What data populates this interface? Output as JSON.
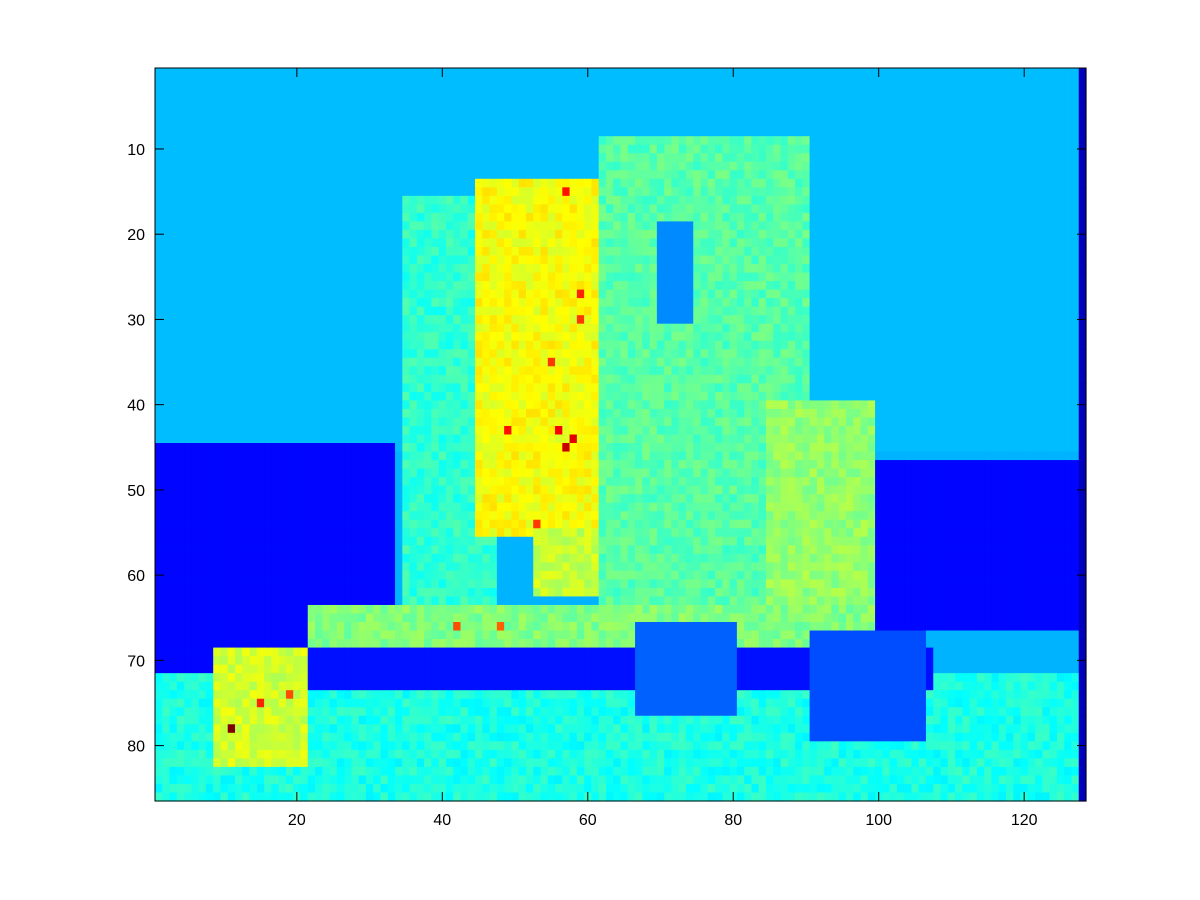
{
  "chart_data": {
    "type": "heatmap",
    "title": "",
    "xlabel": "",
    "ylabel": "",
    "colormap": "jet",
    "columns": 128,
    "rows": 86,
    "xlim": [
      0.5,
      128.5
    ],
    "ylim": [
      0.5,
      86.5
    ],
    "y_direction": "reverse",
    "color_range": [
      0,
      1
    ],
    "x_ticks": [
      20,
      40,
      60,
      80,
      100,
      120
    ],
    "x_tick_labels": [
      "20",
      "40",
      "60",
      "80",
      "100",
      "120"
    ],
    "y_ticks": [
      10,
      20,
      30,
      40,
      50,
      60,
      70,
      80
    ],
    "y_tick_labels": [
      "10",
      "20",
      "30",
      "40",
      "50",
      "60",
      "70",
      "80"
    ],
    "grid": false,
    "regions": [
      {
        "name": "sky",
        "value": 0.31,
        "x": [
          1,
          128
        ],
        "y": [
          1,
          45
        ]
      },
      {
        "name": "left hills",
        "value": 0.13,
        "x": [
          1,
          33
        ],
        "y": [
          45,
          72
        ]
      },
      {
        "name": "right hills",
        "value": 0.13,
        "x": [
          98,
          128
        ],
        "y": [
          47,
          66
        ]
      },
      {
        "name": "ground",
        "value": 0.4,
        "x": [
          1,
          128
        ],
        "y": [
          72,
          86
        ]
      },
      {
        "name": "right edge column",
        "value": 0.06,
        "x": [
          128,
          128
        ],
        "y": [
          1,
          86
        ]
      },
      {
        "name": "left monument block",
        "value": 0.42,
        "x": [
          35,
          47
        ],
        "y": [
          16,
          64
        ]
      },
      {
        "name": "monument face",
        "value": 0.62,
        "x": [
          45,
          66
        ],
        "y": [
          14,
          55
        ]
      },
      {
        "name": "monument lower face",
        "value": 0.57,
        "x": [
          53,
          66
        ],
        "y": [
          55,
          62
        ]
      },
      {
        "name": "monument middle",
        "value": 0.46,
        "x": [
          62,
          90
        ],
        "y": [
          9,
          70
        ]
      },
      {
        "name": "monument right edge",
        "value": 0.52,
        "x": [
          85,
          99
        ],
        "y": [
          40,
          66
        ]
      },
      {
        "name": "shaded slit",
        "value": 0.26,
        "x": [
          70,
          74
        ],
        "y": [
          19,
          30
        ]
      },
      {
        "name": "plinth",
        "value": 0.5,
        "x": [
          22,
          98
        ],
        "y": [
          64,
          69
        ]
      },
      {
        "name": "dark band",
        "value": 0.14,
        "x": [
          19,
          107
        ],
        "y": [
          69,
          73
        ]
      },
      {
        "name": "chair left",
        "value": 0.22,
        "x": [
          67,
          80
        ],
        "y": [
          66,
          76
        ]
      },
      {
        "name": "chair right",
        "value": 0.2,
        "x": [
          91,
          106
        ],
        "y": [
          67,
          79
        ]
      },
      {
        "name": "left figure",
        "value": 0.58,
        "x": [
          9,
          21
        ],
        "y": [
          69,
          82
        ]
      }
    ],
    "hotspots": [
      {
        "x": 57,
        "y": 15,
        "value": 0.86
      },
      {
        "x": 59,
        "y": 27,
        "value": 0.84
      },
      {
        "x": 59,
        "y": 30,
        "value": 0.82
      },
      {
        "x": 55,
        "y": 35,
        "value": 0.82
      },
      {
        "x": 49,
        "y": 43,
        "value": 0.86
      },
      {
        "x": 56,
        "y": 43,
        "value": 0.88
      },
      {
        "x": 58,
        "y": 44,
        "value": 0.9
      },
      {
        "x": 57,
        "y": 45,
        "value": 0.93
      },
      {
        "x": 53,
        "y": 54,
        "value": 0.82
      },
      {
        "x": 42,
        "y": 66,
        "value": 0.8
      },
      {
        "x": 48,
        "y": 66,
        "value": 0.78
      },
      {
        "x": 11,
        "y": 78,
        "value": 1.0
      },
      {
        "x": 15,
        "y": 75,
        "value": 0.84
      },
      {
        "x": 19,
        "y": 74,
        "value": 0.8
      }
    ]
  }
}
